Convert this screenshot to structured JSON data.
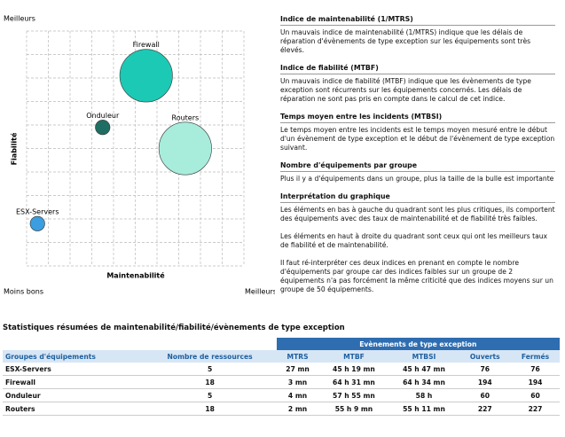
{
  "chart_data": {
    "type": "bubble",
    "top_label": "Meilleurs",
    "y_label": "Fiabilité",
    "x_label": "Maintenabilité",
    "bottom_left_label": "Moins bons",
    "bottom_right_label": "Meilleurs",
    "xlim": [
      0,
      10
    ],
    "ylim": [
      0,
      10
    ],
    "grid": true,
    "points": [
      {
        "name": "Firewall",
        "x": 5.5,
        "y": 8.1,
        "size": 18,
        "color": "#1cc9b4"
      },
      {
        "name": "Onduleur",
        "x": 3.5,
        "y": 5.9,
        "size": 5,
        "color": "#1f6e64"
      },
      {
        "name": "Routers",
        "x": 7.3,
        "y": 5.0,
        "size": 18,
        "color": "#a8ecdc"
      },
      {
        "name": "ESX-Servers",
        "x": 0.5,
        "y": 1.8,
        "size": 5,
        "color": "#3a9ee0"
      }
    ]
  },
  "sections": [
    {
      "title": "Indice de maintenabilité (1/MTRS)",
      "paragraphs": [
        "Un mauvais indice de maintenabilité (1/MTRS) indique que les délais de réparation d'évènements de type exception sur les équipements sont très élevés."
      ]
    },
    {
      "title": "Indice de fiabilité (MTBF)",
      "paragraphs": [
        "Un mauvais indice de fiabilité (MTBF) indique que les évènements de type exception sont récurrents sur les équipements concernés. Les délais de réparation ne sont pas pris en compte dans le calcul de cet indice."
      ]
    },
    {
      "title": "Temps moyen entre les incidents (MTBSI)",
      "paragraphs": [
        "Le temps moyen entre les incidents est le temps moyen mesuré entre le début d'un évènement de type exception et le début de l'évènement de type exception suivant."
      ]
    },
    {
      "title": "Nombre d'équipements par groupe",
      "paragraphs": [
        "Plus il y a d'équipements dans un groupe, plus la taille de la bulle est importante"
      ]
    },
    {
      "title": "Interprétation du graphique",
      "paragraphs": [
        "Les éléments en bas à gauche du quadrant sont les plus critiques, ils comportent des équipements avec des taux de maintenabilité et de fiabilité très faibles.",
        "Les éléments en haut à droite du quadrant sont ceux qui ont les meilleurs taux de fiabilité et de maintenabilité.",
        "Il faut ré-interpréter ces deux indices en prenant en compte le nombre d'équipements par groupe car des indices faibles sur un groupe de 2 équipements n'a pas forcément la même criticité que des indices moyens sur un groupe de 50 équipements."
      ]
    }
  ],
  "table": {
    "title": "Statistiques résumées de maintenabilité/fiabilité/évènements de type exception",
    "group_header": "Evènements de type exception",
    "columns": [
      "Groupes d'équipements",
      "Nombre de ressources",
      "MTRS",
      "MTBF",
      "MTBSI",
      "Ouverts",
      "Fermés"
    ],
    "rows": [
      [
        "ESX-Servers",
        5,
        "27 mn",
        "45 h 19 mn",
        "45 h 47 mn",
        76,
        76
      ],
      [
        "Firewall",
        18,
        "3 mn",
        "64 h 31 mn",
        "64 h 34 mn",
        194,
        194
      ],
      [
        "Onduleur",
        5,
        "4 mn",
        "57 h 55 mn",
        "58 h",
        60,
        60
      ],
      [
        "Routers",
        18,
        "2 mn",
        "55 h 9 mn",
        "55 h 11 mn",
        227,
        227
      ]
    ]
  }
}
